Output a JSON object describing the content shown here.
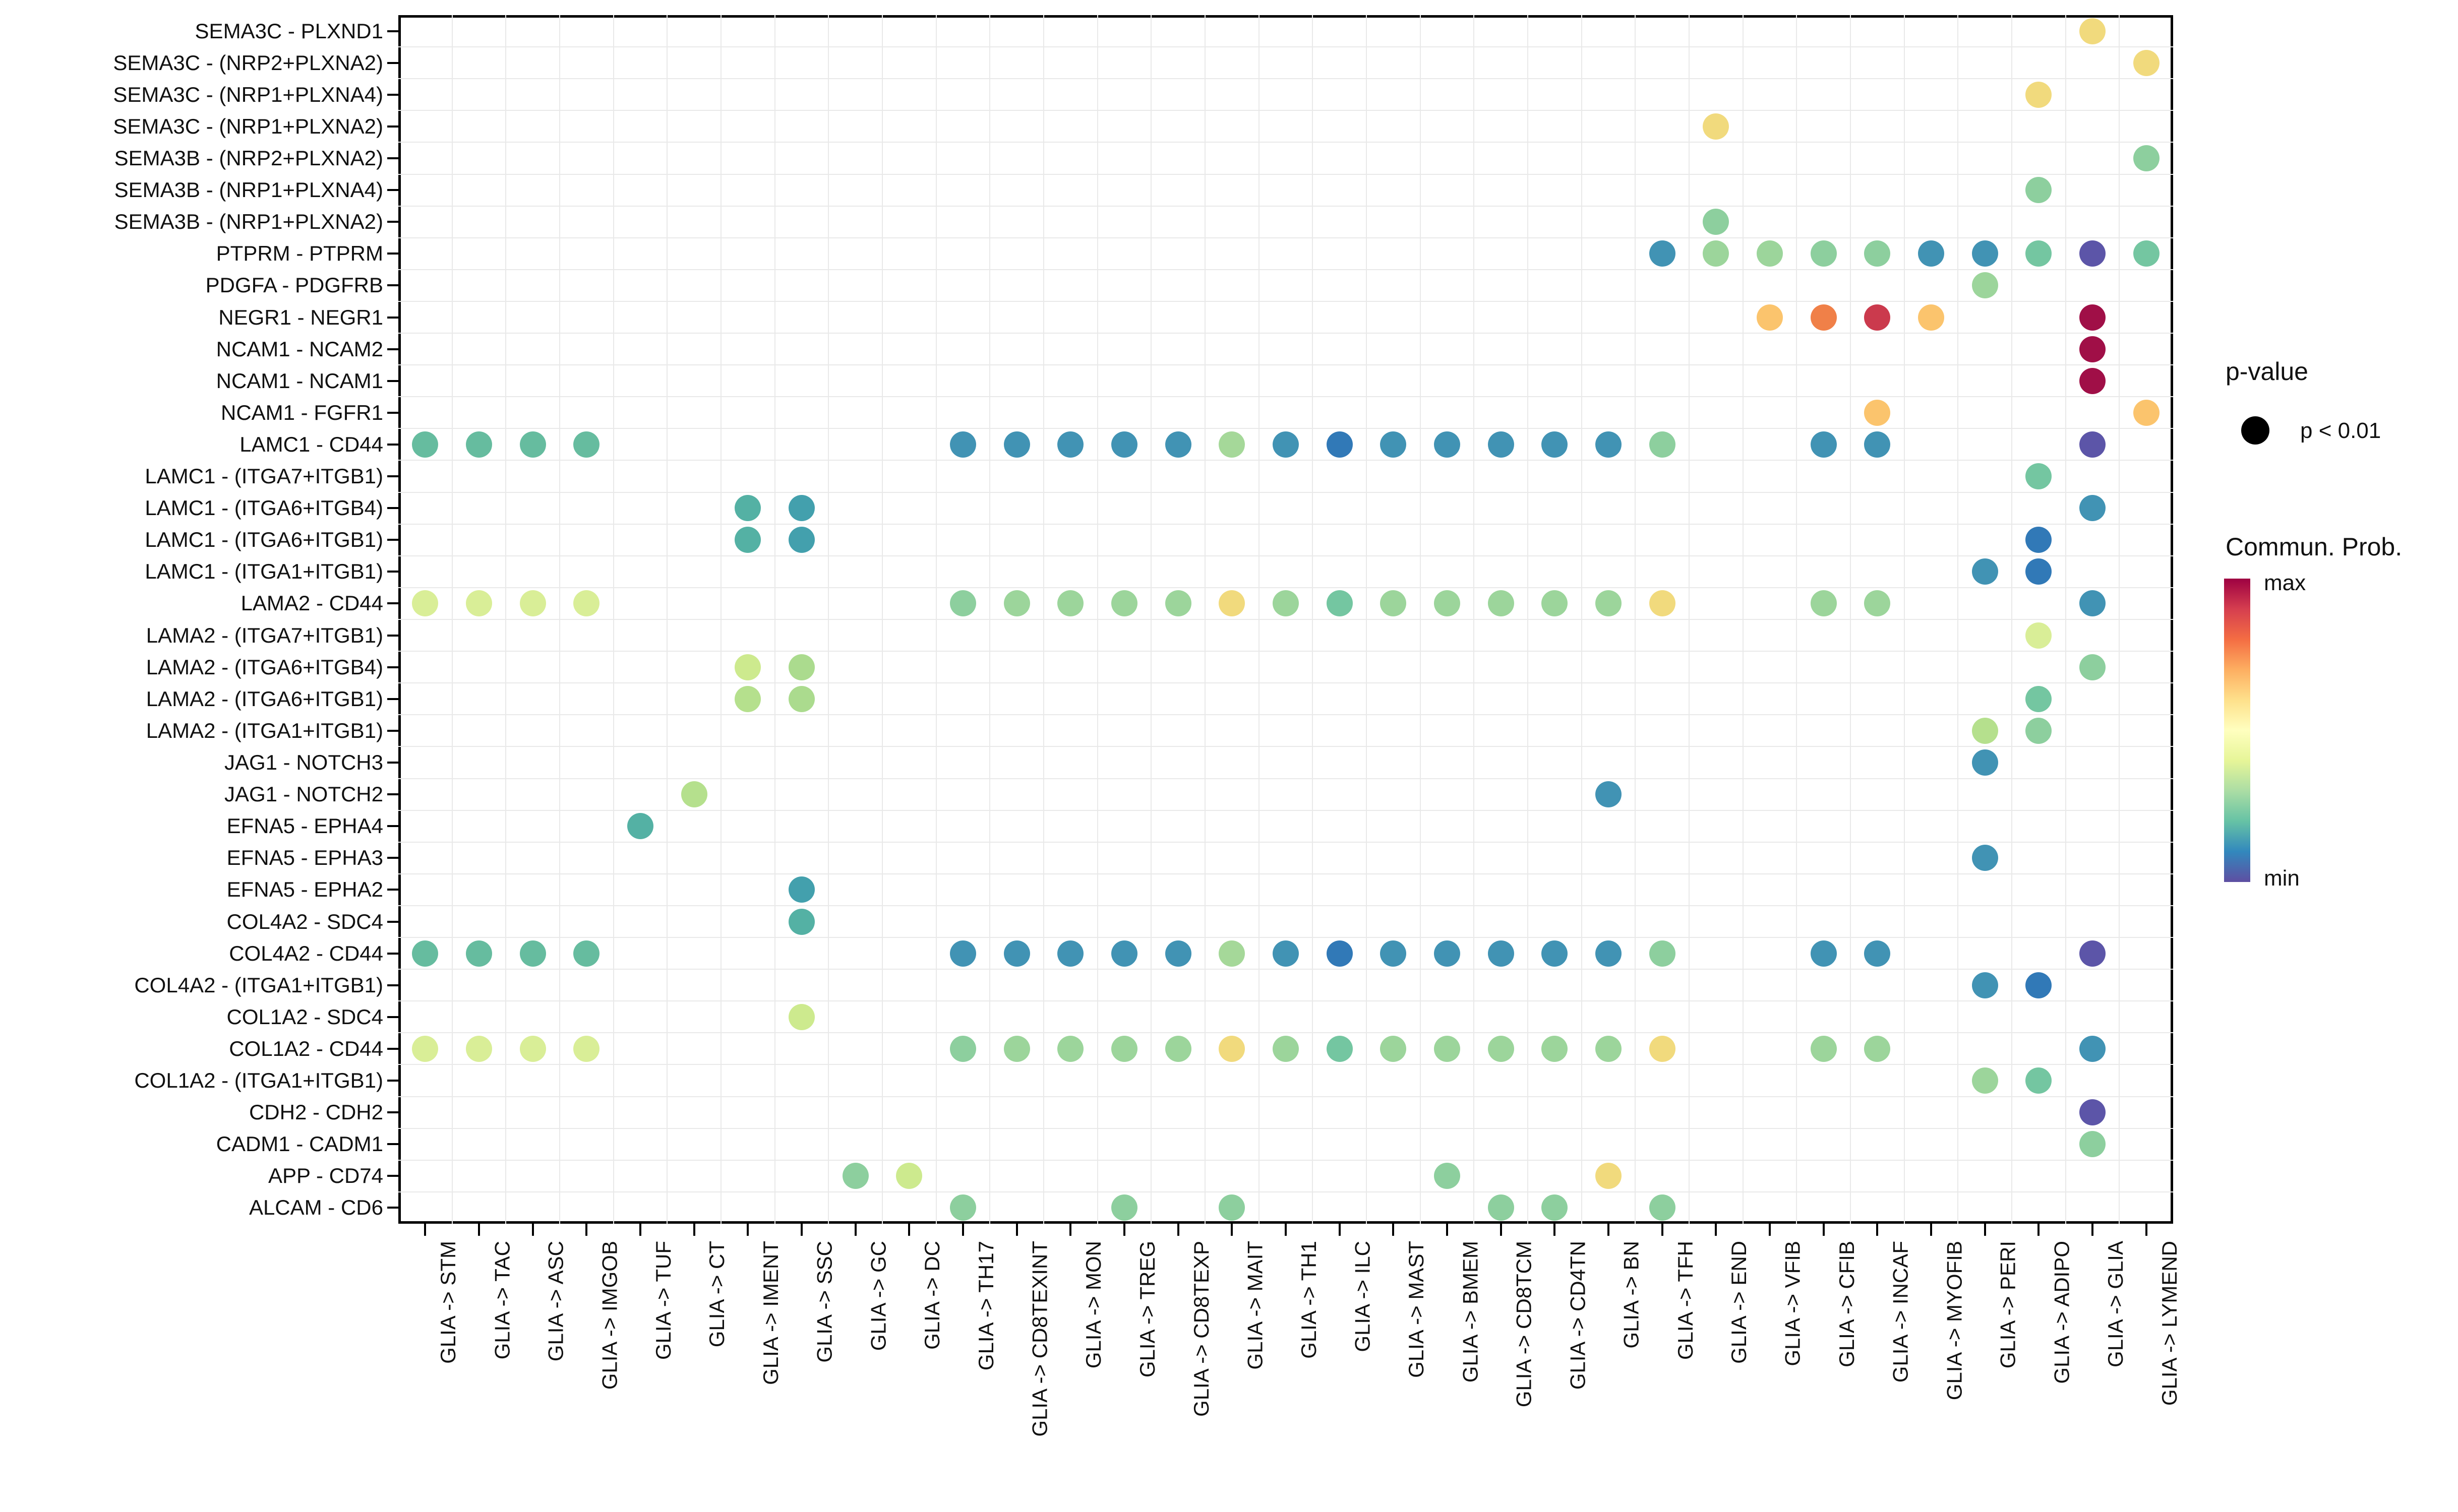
{
  "chart_data": {
    "type": "scatter",
    "subtype": "dotplot-bubble",
    "title": "",
    "x_axis": {
      "label": "",
      "labels": [
        "GLIA -> STM",
        "GLIA -> TAC",
        "GLIA -> ASC",
        "GLIA -> IMGOB",
        "GLIA -> TUF",
        "GLIA -> CT",
        "GLIA -> IMENT",
        "GLIA -> SSC",
        "GLIA -> GC",
        "GLIA -> DC",
        "GLIA -> TH17",
        "GLIA -> CD8TEXINT",
        "GLIA -> MON",
        "GLIA -> TREG",
        "GLIA -> CD8TEXP",
        "GLIA -> MAIT",
        "GLIA -> TH1",
        "GLIA -> ILC",
        "GLIA -> MAST",
        "GLIA -> BMEM",
        "GLIA -> CD8TCM",
        "GLIA -> CD4TN",
        "GLIA -> BN",
        "GLIA -> TFH",
        "GLIA -> END",
        "GLIA -> VFIB",
        "GLIA -> CFIB",
        "GLIA -> INCAF",
        "GLIA -> MYOFIB",
        "GLIA -> PERI",
        "GLIA -> ADIPO",
        "GLIA -> GLIA",
        "GLIA -> LYMEND"
      ]
    },
    "y_axis": {
      "label": "",
      "labels": [
        "SEMA3C - PLXND1",
        "SEMA3C - (NRP2+PLXNA2)",
        "SEMA3C - (NRP1+PLXNA4)",
        "SEMA3C - (NRP1+PLXNA2)",
        "SEMA3B - (NRP2+PLXNA2)",
        "SEMA3B - (NRP1+PLXNA4)",
        "SEMA3B - (NRP1+PLXNA2)",
        "PTPRM - PTPRM",
        "PDGFA - PDGFRB",
        "NEGR1 - NEGR1",
        "NCAM1 - NCAM2",
        "NCAM1 - NCAM1",
        "NCAM1 - FGFR1",
        "LAMC1 - CD44",
        "LAMC1 - (ITGA7+ITGB1)",
        "LAMC1 - (ITGA6+ITGB4)",
        "LAMC1 - (ITGA6+ITGB1)",
        "LAMC1 - (ITGA1+ITGB1)",
        "LAMA2 - CD44",
        "LAMA2 - (ITGA7+ITGB1)",
        "LAMA2 - (ITGA6+ITGB4)",
        "LAMA2 - (ITGA6+ITGB1)",
        "LAMA2 - (ITGA1+ITGB1)",
        "JAG1 - NOTCH3",
        "JAG1 - NOTCH2",
        "EFNA5 - EPHA4",
        "EFNA5 - EPHA3",
        "EFNA5 - EPHA2",
        "COL4A2 - SDC4",
        "COL4A2 - CD44",
        "COL4A2 - (ITGA1+ITGB1)",
        "COL1A2 - SDC4",
        "COL1A2 - CD44",
        "COL1A2 - (ITGA1+ITGB1)",
        "CDH2 - CDH2",
        "CADM1 - CADM1",
        "APP - CD74",
        "ALCAM - CD6"
      ]
    },
    "value_encoding": {
      "color": "Commun. Prob. (min to max)",
      "size": "p-value (all shown dots: p < 0.01)"
    },
    "grid": true,
    "points": [
      [
        1,
        32,
        "yellow"
      ],
      [
        2,
        33,
        "yellow"
      ],
      [
        3,
        31,
        "yellow"
      ],
      [
        4,
        25,
        "yellow"
      ],
      [
        5,
        33,
        "green"
      ],
      [
        6,
        31,
        "green"
      ],
      [
        7,
        25,
        "green"
      ],
      [
        8,
        24,
        "blue"
      ],
      [
        8,
        25,
        "lgreen"
      ],
      [
        8,
        26,
        "lgreen"
      ],
      [
        8,
        27,
        "green"
      ],
      [
        8,
        28,
        "green"
      ],
      [
        8,
        29,
        "blue"
      ],
      [
        8,
        30,
        "blue"
      ],
      [
        8,
        31,
        "gteal"
      ],
      [
        8,
        32,
        "purple"
      ],
      [
        8,
        33,
        "gteal"
      ],
      [
        9,
        30,
        "lgreen"
      ],
      [
        10,
        26,
        "lorange"
      ],
      [
        10,
        27,
        "orange"
      ],
      [
        10,
        28,
        "red"
      ],
      [
        10,
        29,
        "lorange"
      ],
      [
        10,
        32,
        "maroon"
      ],
      [
        11,
        32,
        "maroon"
      ],
      [
        12,
        32,
        "maroon"
      ],
      [
        13,
        28,
        "lorange"
      ],
      [
        13,
        33,
        "lorange"
      ],
      [
        14,
        1,
        "teal"
      ],
      [
        14,
        2,
        "teal"
      ],
      [
        14,
        3,
        "teal"
      ],
      [
        14,
        4,
        "teal"
      ],
      [
        14,
        11,
        "blue"
      ],
      [
        14,
        12,
        "blue"
      ],
      [
        14,
        13,
        "blue"
      ],
      [
        14,
        14,
        "blue"
      ],
      [
        14,
        15,
        "blue"
      ],
      [
        14,
        16,
        "lgreen2"
      ],
      [
        14,
        17,
        "blue"
      ],
      [
        14,
        18,
        "blue2"
      ],
      [
        14,
        19,
        "blue"
      ],
      [
        14,
        20,
        "blue"
      ],
      [
        14,
        21,
        "blue"
      ],
      [
        14,
        22,
        "blue"
      ],
      [
        14,
        23,
        "blue"
      ],
      [
        14,
        24,
        "green"
      ],
      [
        14,
        27,
        "blue"
      ],
      [
        14,
        28,
        "blue"
      ],
      [
        14,
        32,
        "purple"
      ],
      [
        15,
        31,
        "gteal"
      ],
      [
        16,
        7,
        "teal2"
      ],
      [
        16,
        8,
        "tealblue"
      ],
      [
        16,
        32,
        "blue"
      ],
      [
        17,
        7,
        "teal2"
      ],
      [
        17,
        8,
        "tealblue"
      ],
      [
        17,
        31,
        "blue2"
      ],
      [
        18,
        30,
        "blue"
      ],
      [
        18,
        31,
        "blue2"
      ],
      [
        19,
        1,
        "ygreen"
      ],
      [
        19,
        2,
        "ygreen"
      ],
      [
        19,
        3,
        "ygreen"
      ],
      [
        19,
        4,
        "ygreen"
      ],
      [
        19,
        11,
        "green"
      ],
      [
        19,
        12,
        "lgreen"
      ],
      [
        19,
        13,
        "lgreen"
      ],
      [
        19,
        14,
        "lgreen"
      ],
      [
        19,
        15,
        "lgreen"
      ],
      [
        19,
        16,
        "yellow"
      ],
      [
        19,
        17,
        "lgreen"
      ],
      [
        19,
        18,
        "gteal"
      ],
      [
        19,
        19,
        "lgreen"
      ],
      [
        19,
        20,
        "lgreen"
      ],
      [
        19,
        21,
        "lgreen"
      ],
      [
        19,
        22,
        "lgreen"
      ],
      [
        19,
        23,
        "lgreen"
      ],
      [
        19,
        24,
        "yellow"
      ],
      [
        19,
        27,
        "lgreen"
      ],
      [
        19,
        28,
        "lgreen"
      ],
      [
        19,
        32,
        "blue"
      ],
      [
        20,
        31,
        "ygreen"
      ],
      [
        21,
        7,
        "ygreen2"
      ],
      [
        21,
        8,
        "palegreen"
      ],
      [
        21,
        32,
        "green"
      ],
      [
        22,
        7,
        "pgreen"
      ],
      [
        22,
        8,
        "palegreen"
      ],
      [
        22,
        31,
        "gteal"
      ],
      [
        23,
        30,
        "pgreen"
      ],
      [
        23,
        31,
        "green"
      ],
      [
        24,
        30,
        "blue"
      ],
      [
        25,
        6,
        "pgreen"
      ],
      [
        25,
        23,
        "blue"
      ],
      [
        26,
        5,
        "teal2"
      ],
      [
        27,
        30,
        "blue"
      ],
      [
        28,
        8,
        "tealblue"
      ],
      [
        29,
        8,
        "teal2"
      ],
      [
        30,
        1,
        "teal"
      ],
      [
        30,
        2,
        "teal"
      ],
      [
        30,
        3,
        "teal"
      ],
      [
        30,
        4,
        "teal"
      ],
      [
        30,
        11,
        "blue"
      ],
      [
        30,
        12,
        "blue"
      ],
      [
        30,
        13,
        "blue"
      ],
      [
        30,
        14,
        "blue"
      ],
      [
        30,
        15,
        "blue"
      ],
      [
        30,
        16,
        "lgreen2"
      ],
      [
        30,
        17,
        "blue"
      ],
      [
        30,
        18,
        "blue2"
      ],
      [
        30,
        19,
        "blue"
      ],
      [
        30,
        20,
        "blue"
      ],
      [
        30,
        21,
        "blue"
      ],
      [
        30,
        22,
        "blue"
      ],
      [
        30,
        23,
        "blue"
      ],
      [
        30,
        24,
        "green"
      ],
      [
        30,
        27,
        "blue"
      ],
      [
        30,
        28,
        "blue"
      ],
      [
        30,
        32,
        "purple"
      ],
      [
        31,
        30,
        "blue"
      ],
      [
        31,
        31,
        "blue2"
      ],
      [
        32,
        8,
        "ygreen2"
      ],
      [
        33,
        1,
        "ygreen"
      ],
      [
        33,
        2,
        "ygreen"
      ],
      [
        33,
        3,
        "ygreen"
      ],
      [
        33,
        4,
        "ygreen"
      ],
      [
        33,
        11,
        "green"
      ],
      [
        33,
        12,
        "lgreen"
      ],
      [
        33,
        13,
        "lgreen"
      ],
      [
        33,
        14,
        "lgreen"
      ],
      [
        33,
        15,
        "lgreen"
      ],
      [
        33,
        16,
        "yellow"
      ],
      [
        33,
        17,
        "lgreen"
      ],
      [
        33,
        18,
        "gteal"
      ],
      [
        33,
        19,
        "lgreen"
      ],
      [
        33,
        20,
        "lgreen"
      ],
      [
        33,
        21,
        "lgreen"
      ],
      [
        33,
        22,
        "lgreen"
      ],
      [
        33,
        23,
        "lgreen"
      ],
      [
        33,
        24,
        "yellow"
      ],
      [
        33,
        27,
        "lgreen"
      ],
      [
        33,
        28,
        "lgreen"
      ],
      [
        33,
        32,
        "blue"
      ],
      [
        34,
        30,
        "lgreen"
      ],
      [
        34,
        31,
        "gteal"
      ],
      [
        35,
        32,
        "purple"
      ],
      [
        36,
        32,
        "green"
      ],
      [
        37,
        9,
        "green"
      ],
      [
        37,
        10,
        "ygreen2"
      ],
      [
        37,
        20,
        "green"
      ],
      [
        37,
        23,
        "yellow"
      ],
      [
        38,
        11,
        "green"
      ],
      [
        38,
        14,
        "green"
      ],
      [
        38,
        16,
        "green"
      ],
      [
        38,
        21,
        "green"
      ],
      [
        38,
        22,
        "green"
      ],
      [
        38,
        24,
        "green"
      ]
    ]
  },
  "palette": {
    "teal": "#66BC9F",
    "teal2": "#54B1A4",
    "tealblue": "#43A0AD",
    "blue": "#4193B4",
    "blue2": "#3179B7",
    "purple": "#5C55A8",
    "gteal": "#74C6A1",
    "green": "#8DCF9E",
    "lgreen": "#9CD59B",
    "lgreen2": "#A5D899",
    "pgreen": "#B5E08D",
    "palegreen": "#ABDB8E",
    "ygreen2": "#CDEA8E",
    "ygreen": "#D9EE97",
    "yellow": "#F1DA7D",
    "lorange": "#FBC46D",
    "orange": "#F08048",
    "red": "#CB3A4D",
    "maroon": "#A00F47"
  },
  "legend": {
    "pvalue": {
      "title": "p-value",
      "entry_label": "p < 0.01",
      "dot_color": "#000000"
    },
    "commun_prob": {
      "title": "Commun. Prob.",
      "max_label": "max",
      "min_label": "min",
      "gradient_top_to_bottom": [
        "#9E0142",
        "#D53E4F",
        "#F46D43",
        "#FDAE61",
        "#FEE08B",
        "#FFFFBF",
        "#E6F598",
        "#ABDDA4",
        "#66C2A5",
        "#3288BD",
        "#5E4FA2"
      ]
    }
  },
  "style": {
    "background": "#FFFFFF",
    "panel_border": "#000000",
    "gridline": "#E9E9E9",
    "text": "#111111"
  }
}
